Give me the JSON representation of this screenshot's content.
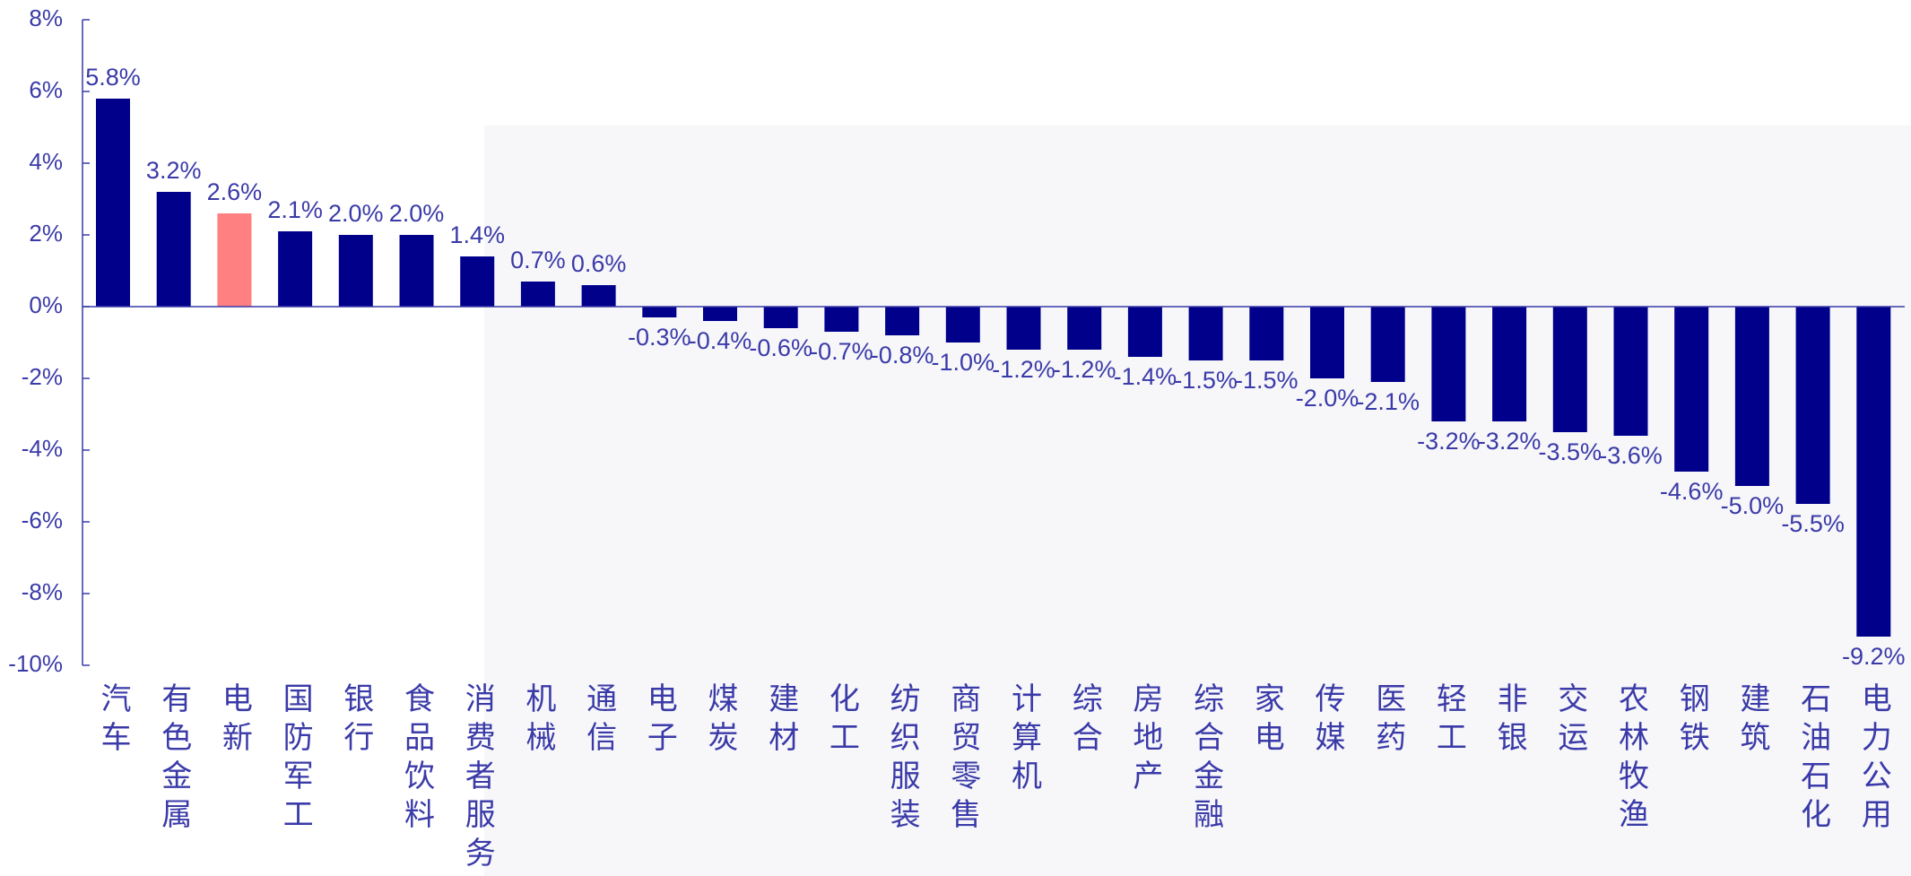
{
  "chart_data": {
    "type": "bar",
    "categories": [
      "汽车",
      "有色金属",
      "电新",
      "国防军工",
      "银行",
      "食品饮料",
      "消费者服务",
      "机械",
      "通信",
      "电子",
      "煤炭",
      "建材",
      "化工",
      "纺织服装",
      "商贸零售",
      "计算机",
      "综合",
      "房地产",
      "综合金融",
      "家电",
      "传媒",
      "医药",
      "轻工",
      "非银",
      "交运",
      "农林牧渔",
      "钢铁",
      "建筑",
      "石油石化",
      "电力公用"
    ],
    "values": [
      5.8,
      3.2,
      2.6,
      2.1,
      2.0,
      2.0,
      1.4,
      0.7,
      0.6,
      -0.3,
      -0.4,
      -0.6,
      -0.7,
      -0.8,
      -1.0,
      -1.2,
      -1.2,
      -1.4,
      -1.5,
      -1.5,
      -2.0,
      -2.1,
      -3.2,
      -3.2,
      -3.5,
      -3.6,
      -4.6,
      -5.0,
      -5.5,
      -9.2
    ],
    "value_labels": [
      "5.8%",
      "3.2%",
      "2.6%",
      "2.1%",
      "2.0%",
      "2.0%",
      "1.4%",
      "0.7%",
      "0.6%",
      "-0.3%",
      "-0.4%",
      "-0.6%",
      "-0.7%",
      "-0.8%",
      "-1.0%",
      "-1.2%",
      "-1.2%",
      "-1.4%",
      "-1.5%",
      "-1.5%",
      "-2.0%",
      "-2.1%",
      "-3.2%",
      "-3.2%",
      "-3.5%",
      "-3.6%",
      "-4.6%",
      "-5.0%",
      "-5.5%",
      "-9.2%"
    ],
    "colors": [
      "#00008b",
      "#00008b",
      "#ff8080",
      "#00008b",
      "#00008b",
      "#00008b",
      "#00008b",
      "#00008b",
      "#00008b",
      "#00008b",
      "#00008b",
      "#00008b",
      "#00008b",
      "#00008b",
      "#00008b",
      "#00008b",
      "#00008b",
      "#00008b",
      "#00008b",
      "#00008b",
      "#00008b",
      "#00008b",
      "#00008b",
      "#00008b",
      "#00008b",
      "#00008b",
      "#00008b",
      "#00008b",
      "#00008b",
      "#00008b"
    ],
    "ylim": [
      -10,
      8
    ],
    "yticks": [
      {
        "value": 8,
        "label": "8%"
      },
      {
        "value": 6,
        "label": "6%"
      },
      {
        "value": 4,
        "label": "4%"
      },
      {
        "value": 2,
        "label": "2%"
      },
      {
        "value": 0,
        "label": "0%"
      },
      {
        "value": -2,
        "label": "-2%"
      },
      {
        "value": -4,
        "label": "-4%"
      },
      {
        "value": -6,
        "label": "-6%"
      },
      {
        "value": -8,
        "label": "-8%"
      },
      {
        "value": -10,
        "label": "-10%"
      }
    ],
    "grid": false
  }
}
